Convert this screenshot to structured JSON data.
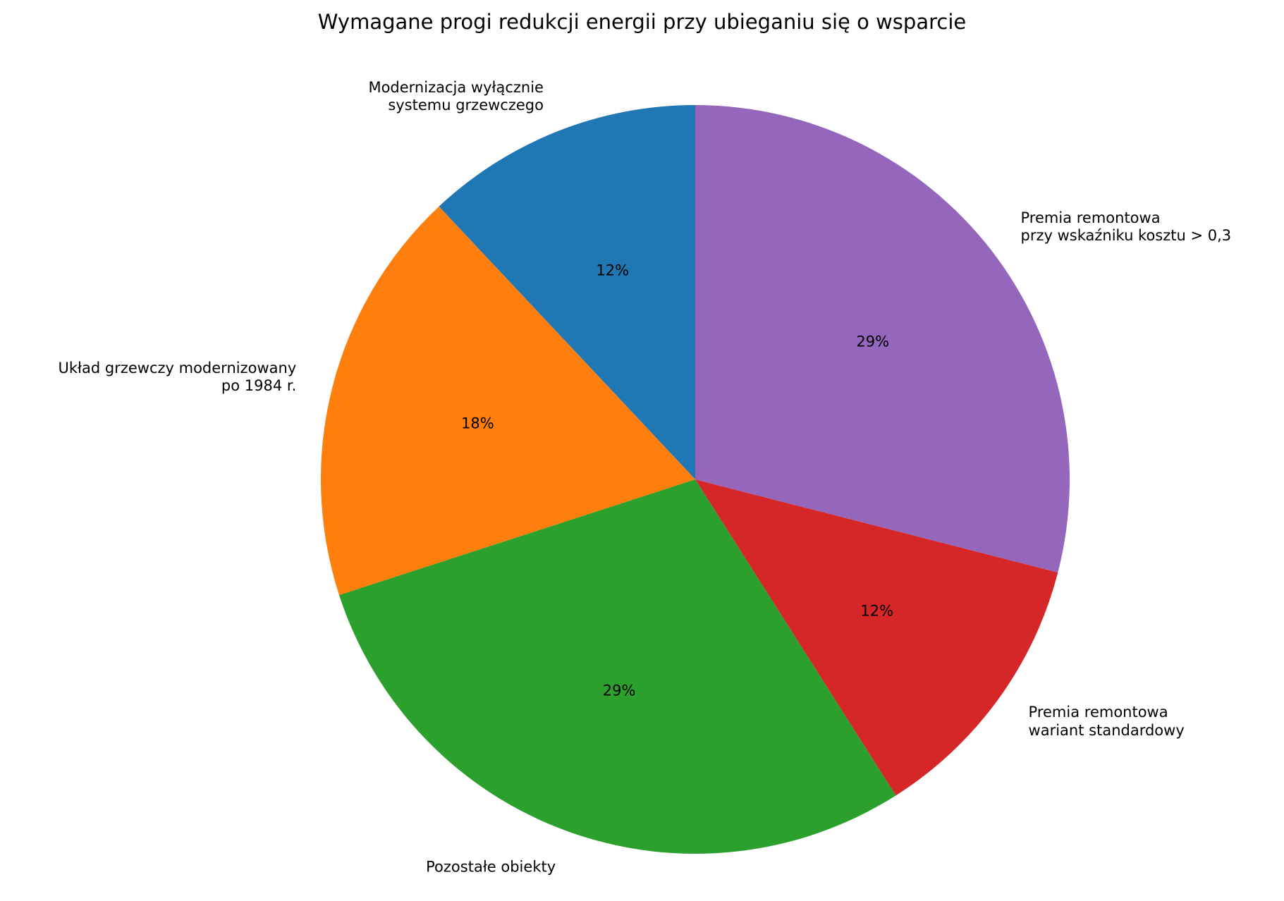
{
  "chart_data": {
    "type": "pie",
    "title": "Wymagane progi redukcji energii przy ubieganiu się o wsparcie",
    "categories": [
      "Modernizacja wyłącznie\nsystemu grzewczego",
      "Układ grzewczy modernizowany\npo 1984 r.",
      "Pozostałe obiekty",
      "Premia remontowa\nwariant standardowy",
      "Premia remontowa\nprzy wskaźniku kosztu > 0,3"
    ],
    "values": [
      12,
      18,
      29,
      12,
      29
    ],
    "value_labels": [
      "12%",
      "18%",
      "29%",
      "12%",
      "29%"
    ],
    "colors": [
      "#1f77b4",
      "#ff7f0e",
      "#2ca02c",
      "#d62728",
      "#9467bd"
    ]
  }
}
